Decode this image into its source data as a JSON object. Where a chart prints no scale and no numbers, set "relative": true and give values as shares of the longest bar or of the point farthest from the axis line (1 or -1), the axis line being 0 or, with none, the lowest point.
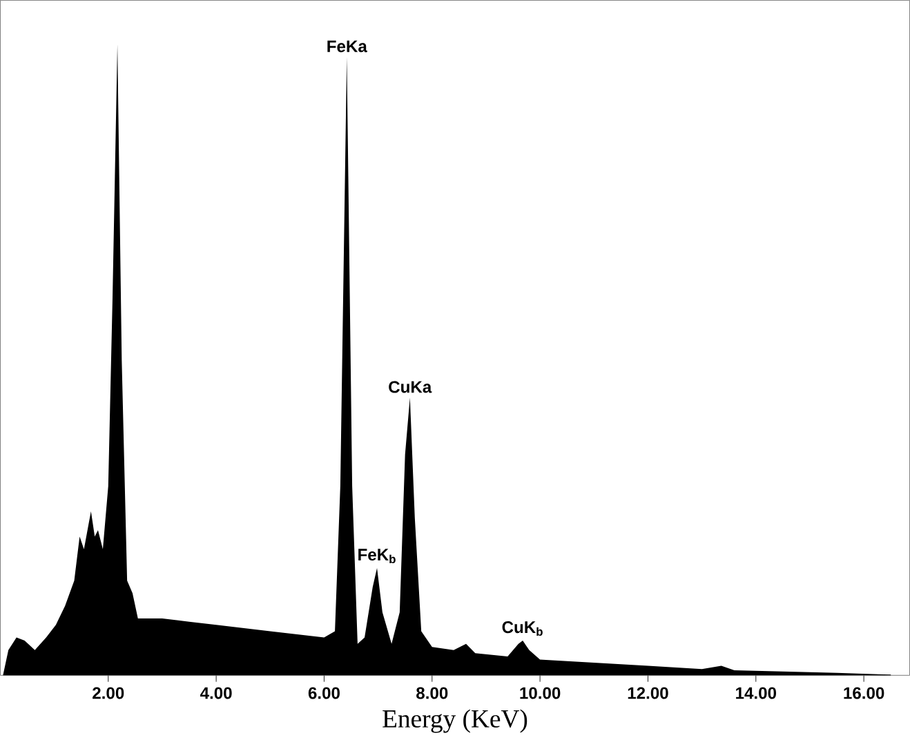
{
  "chart_data": {
    "type": "area",
    "relative": true,
    "xlabel": "Energy (KeV)",
    "xlim": [
      0,
      16.85
    ],
    "xticks": [
      {
        "value": 2,
        "label": "2.00"
      },
      {
        "value": 4,
        "label": "4.00"
      },
      {
        "value": 6,
        "label": "6.00"
      },
      {
        "value": 8,
        "label": "8.00"
      },
      {
        "value": 10,
        "label": "10.00"
      },
      {
        "value": 12,
        "label": "12.00"
      },
      {
        "value": 14,
        "label": "14.00"
      },
      {
        "value": 16,
        "label": "16.00"
      }
    ],
    "series": [
      {
        "color": "#000000",
        "x": [
          0.05,
          0.15,
          0.3,
          0.45,
          0.64,
          0.85,
          1.03,
          1.2,
          1.37,
          1.47,
          1.55,
          1.68,
          1.75,
          1.81,
          1.9,
          2.0,
          2.08,
          2.17,
          2.25,
          2.35,
          2.45,
          2.55,
          3.0,
          3.5,
          4.0,
          4.5,
          5.0,
          5.5,
          6.0,
          6.2,
          6.3,
          6.42,
          6.52,
          6.62,
          6.75,
          6.9,
          6.98,
          7.08,
          7.25,
          7.4,
          7.5,
          7.59,
          7.68,
          7.8,
          8.0,
          8.4,
          8.63,
          8.8,
          9.4,
          9.6,
          9.68,
          9.8,
          10.0,
          11.0,
          12.0,
          13.0,
          13.36,
          13.6,
          14.5,
          15.5,
          16.5
        ],
        "values": [
          0,
          0.04,
          0.06,
          0.055,
          0.04,
          0.06,
          0.08,
          0.11,
          0.15,
          0.22,
          0.2,
          0.26,
          0.22,
          0.23,
          0.2,
          0.3,
          0.6,
          1.0,
          0.5,
          0.15,
          0.13,
          0.09,
          0.09,
          0.085,
          0.08,
          0.075,
          0.07,
          0.065,
          0.06,
          0.07,
          0.3,
          0.98,
          0.3,
          0.05,
          0.06,
          0.14,
          0.17,
          0.1,
          0.05,
          0.1,
          0.35,
          0.44,
          0.25,
          0.07,
          0.045,
          0.04,
          0.05,
          0.035,
          0.03,
          0.05,
          0.055,
          0.04,
          0.025,
          0.02,
          0.015,
          0.01,
          0.015,
          0.008,
          0.006,
          0.004,
          0.001
        ]
      }
    ],
    "annotations": [
      {
        "text": "FeKa",
        "x": 6.42,
        "y": 0.98
      },
      {
        "text": "FeK$_{b}$",
        "x": 6.98,
        "y": 0.17
      },
      {
        "text": "CuKa",
        "x": 7.59,
        "y": 0.44
      },
      {
        "text": "CuK$_{b}$",
        "x": 9.68,
        "y": 0.055
      }
    ]
  }
}
